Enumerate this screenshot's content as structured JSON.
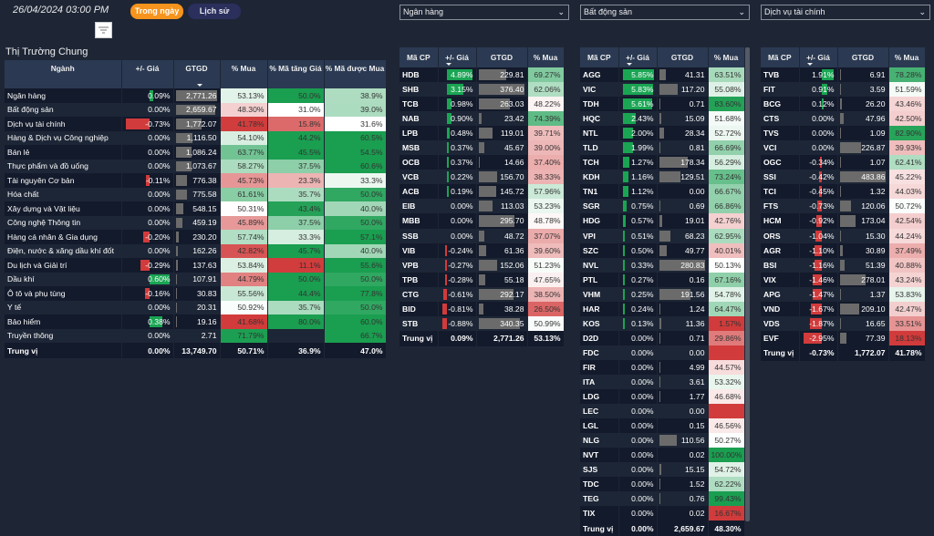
{
  "header": {
    "datetime": "26/04/2024 03:00 PM",
    "btn_intraday": "Trong ngày",
    "btn_history": "Lịch sử",
    "filter_icon": "filter-icon"
  },
  "colors": {
    "positive": "#1aa553",
    "negative": "#d13b3b",
    "gtgd_bar": "#6b6b6b",
    "header_bg": "#2b3a52",
    "accent": "#f7941d"
  },
  "market": {
    "title": "Thị Trường Chung",
    "columns": [
      "Ngành",
      "+/- Giá",
      "GTGD",
      "% Mua",
      "% Mã tăng Giá",
      "% Mã được Mua"
    ],
    "sorted_column": "GTGD",
    "rows": [
      [
        "Ngân hàng",
        "0.09%",
        "2,771.26",
        "53.13%",
        "50.0%",
        "38.9%"
      ],
      [
        "Bất động sản",
        "0.00%",
        "2,659.67",
        "48.30%",
        "31.0%",
        "39.0%"
      ],
      [
        "Dịch vụ tài chính",
        "-0.73%",
        "1,772.07",
        "41.78%",
        "15.8%",
        "31.6%"
      ],
      [
        "Hàng & Dịch vụ Công nghiệp",
        "0.00%",
        "1,116.50",
        "54.10%",
        "44.2%",
        "60.5%"
      ],
      [
        "Bán lẻ",
        "0.00%",
        "1,086.24",
        "63.77%",
        "45.5%",
        "54.5%"
      ],
      [
        "Thực phẩm và đồ uống",
        "0.00%",
        "1,073.67",
        "58.27%",
        "37.5%",
        "60.6%"
      ],
      [
        "Tài nguyên Cơ bản",
        "-0.11%",
        "776.38",
        "45.73%",
        "23.3%",
        "33.3%"
      ],
      [
        "Hóa chất",
        "0.00%",
        "775.58",
        "61.61%",
        "35.7%",
        "50.0%"
      ],
      [
        "Xây dựng và Vật liệu",
        "0.00%",
        "548.15",
        "50.31%",
        "43.4%",
        "40.0%"
      ],
      [
        "Công nghệ Thông tin",
        "0.00%",
        "459.19",
        "45.89%",
        "37.5%",
        "50.0%"
      ],
      [
        "Hàng cá nhân & Gia dụng",
        "-0.20%",
        "230.20",
        "57.74%",
        "33.3%",
        "57.1%"
      ],
      [
        "Điện, nước & xăng dầu khí đốt",
        "0.00%",
        "162.26",
        "42.82%",
        "45.7%",
        "40.0%"
      ],
      [
        "Du lịch và Giải trí",
        "-0.29%",
        "137.63",
        "53.84%",
        "11.1%",
        "55.6%"
      ],
      [
        "Dầu khí",
        "0.60%",
        "107.91",
        "44.79%",
        "50.0%",
        "50.0%"
      ],
      [
        "Ô tô và phụ tùng",
        "-0.16%",
        "30.83",
        "55.56%",
        "44.4%",
        "77.8%"
      ],
      [
        "Y tế",
        "0.00%",
        "20.31",
        "50.92%",
        "35.7%",
        "50.0%"
      ],
      [
        "Bảo hiểm",
        "0.38%",
        "19.16",
        "41.68%",
        "80.0%",
        "60.0%"
      ],
      [
        "Truyền thông",
        "0.00%",
        "2.71",
        "71.79%",
        "",
        "66.7%"
      ]
    ],
    "total": [
      "Trung vị",
      "0.00%",
      "13,749.70",
      "50.71%",
      "36.9%",
      "47.0%"
    ]
  },
  "sectors": [
    {
      "dropdown": "Ngân hàng",
      "columns": [
        "Mã CP",
        "+/- Giá",
        "GTGD",
        "% Mua"
      ],
      "rows": [
        [
          "HDB",
          "4.89%",
          "229.81",
          "69.27%"
        ],
        [
          "SHB",
          "3.15%",
          "376.40",
          "62.06%"
        ],
        [
          "TCB",
          "0.98%",
          "263.03",
          "48.22%"
        ],
        [
          "NAB",
          "0.90%",
          "23.42",
          "74.39%"
        ],
        [
          "LPB",
          "0.48%",
          "119.01",
          "39.71%"
        ],
        [
          "MSB",
          "0.37%",
          "45.67",
          "39.00%"
        ],
        [
          "OCB",
          "0.37%",
          "14.66",
          "37.40%"
        ],
        [
          "VCB",
          "0.22%",
          "156.70",
          "38.33%"
        ],
        [
          "ACB",
          "0.19%",
          "145.72",
          "57.96%"
        ],
        [
          "EIB",
          "0.00%",
          "113.03",
          "53.23%"
        ],
        [
          "MBB",
          "0.00%",
          "295.70",
          "48.78%"
        ],
        [
          "SSB",
          "0.00%",
          "48.72",
          "37.07%"
        ],
        [
          "VIB",
          "-0.24%",
          "61.36",
          "39.60%"
        ],
        [
          "VPB",
          "-0.27%",
          "152.06",
          "51.23%"
        ],
        [
          "TPB",
          "-0.28%",
          "55.18",
          "47.65%"
        ],
        [
          "CTG",
          "-0.61%",
          "292.17",
          "38.50%"
        ],
        [
          "BID",
          "-0.81%",
          "38.28",
          "26.50%"
        ],
        [
          "STB",
          "-0.88%",
          "340.35",
          "50.99%"
        ]
      ],
      "total": [
        "Trung vị",
        "0.09%",
        "2,771.26",
        "53.13%"
      ]
    },
    {
      "dropdown": "Bất động sản",
      "columns": [
        "Mã CP",
        "+/- Giá",
        "GTGD",
        "% Mua"
      ],
      "rows": [
        [
          "AGG",
          "5.85%",
          "41.31",
          "63.51%"
        ],
        [
          "VIC",
          "5.83%",
          "117.20",
          "55.08%"
        ],
        [
          "TDH",
          "5.61%",
          "0.71",
          "83.60%"
        ],
        [
          "HQC",
          "2.43%",
          "15.09",
          "51.68%"
        ],
        [
          "NTL",
          "2.00%",
          "28.34",
          "52.72%"
        ],
        [
          "TLD",
          "1.99%",
          "0.81",
          "66.69%"
        ],
        [
          "TCH",
          "1.27%",
          "178.34",
          "56.29%"
        ],
        [
          "KDH",
          "1.16%",
          "129.51",
          "73.24%"
        ],
        [
          "TN1",
          "1.12%",
          "0.00",
          "66.67%"
        ],
        [
          "SGR",
          "0.75%",
          "0.69",
          "66.86%"
        ],
        [
          "HDG",
          "0.57%",
          "19.01",
          "42.76%"
        ],
        [
          "VPI",
          "0.51%",
          "68.23",
          "62.95%"
        ],
        [
          "SZC",
          "0.50%",
          "49.77",
          "40.01%"
        ],
        [
          "NVL",
          "0.33%",
          "280.83",
          "50.13%"
        ],
        [
          "PTL",
          "0.27%",
          "0.16",
          "67.16%"
        ],
        [
          "VHM",
          "0.25%",
          "191.56",
          "54.78%"
        ],
        [
          "HAR",
          "0.24%",
          "1.24",
          "64.47%"
        ],
        [
          "KOS",
          "0.13%",
          "11.36",
          "1.57%"
        ],
        [
          "D2D",
          "0.00%",
          "0.71",
          "29.86%"
        ],
        [
          "FDC",
          "0.00%",
          "0.00",
          ""
        ],
        [
          "FIR",
          "0.00%",
          "4.99",
          "44.57%"
        ],
        [
          "ITA",
          "0.00%",
          "3.61",
          "53.32%"
        ],
        [
          "LDG",
          "0.00%",
          "1.77",
          "46.68%"
        ],
        [
          "LEC",
          "0.00%",
          "0.00",
          ""
        ],
        [
          "LGL",
          "0.00%",
          "0.15",
          "46.56%"
        ],
        [
          "NLG",
          "0.00%",
          "110.56",
          "50.27%"
        ],
        [
          "NVT",
          "0.00%",
          "0.02",
          "100.00%"
        ],
        [
          "SJS",
          "0.00%",
          "15.15",
          "54.72%"
        ],
        [
          "TDC",
          "0.00%",
          "1.52",
          "62.22%"
        ],
        [
          "TEG",
          "0.00%",
          "0.76",
          "99.43%"
        ],
        [
          "TIX",
          "0.00%",
          "0.02",
          "16.67%"
        ]
      ],
      "total": [
        "Trung vị",
        "0.00%",
        "2,659.67",
        "48.30%"
      ]
    },
    {
      "dropdown": "Dịch vụ tài chính",
      "columns": [
        "Mã CP",
        "+/- Giá",
        "GTGD",
        "% Mua"
      ],
      "rows": [
        [
          "TVB",
          "1.91%",
          "6.91",
          "78.28%"
        ],
        [
          "FIT",
          "0.91%",
          "3.59",
          "51.59%"
        ],
        [
          "BCG",
          "0.12%",
          "26.20",
          "43.46%"
        ],
        [
          "CTS",
          "0.00%",
          "47.96",
          "42.50%"
        ],
        [
          "TVS",
          "0.00%",
          "1.09",
          "82.90%"
        ],
        [
          "VCI",
          "0.00%",
          "226.87",
          "39.93%"
        ],
        [
          "OGC",
          "-0.34%",
          "1.07",
          "62.41%"
        ],
        [
          "SSI",
          "-0.42%",
          "483.86",
          "45.22%"
        ],
        [
          "TCI",
          "-0.45%",
          "1.32",
          "44.03%"
        ],
        [
          "FTS",
          "-0.73%",
          "120.06",
          "50.72%"
        ],
        [
          "HCM",
          "-0.92%",
          "173.04",
          "42.54%"
        ],
        [
          "ORS",
          "-1.04%",
          "15.30",
          "44.24%"
        ],
        [
          "AGR",
          "-1.10%",
          "30.89",
          "37.49%"
        ],
        [
          "BSI",
          "-1.16%",
          "51.39",
          "40.88%"
        ],
        [
          "VIX",
          "-1.46%",
          "278.01",
          "43.24%"
        ],
        [
          "APG",
          "-1.47%",
          "1.37",
          "53.83%"
        ],
        [
          "VND",
          "-1.67%",
          "209.10",
          "42.47%"
        ],
        [
          "VDS",
          "-1.87%",
          "16.65",
          "33.51%"
        ],
        [
          "EVF",
          "-2.95%",
          "77.39",
          "18.13%"
        ]
      ],
      "total": [
        "Trung vị",
        "-0.73%",
        "1,772.07",
        "41.78%"
      ]
    }
  ]
}
